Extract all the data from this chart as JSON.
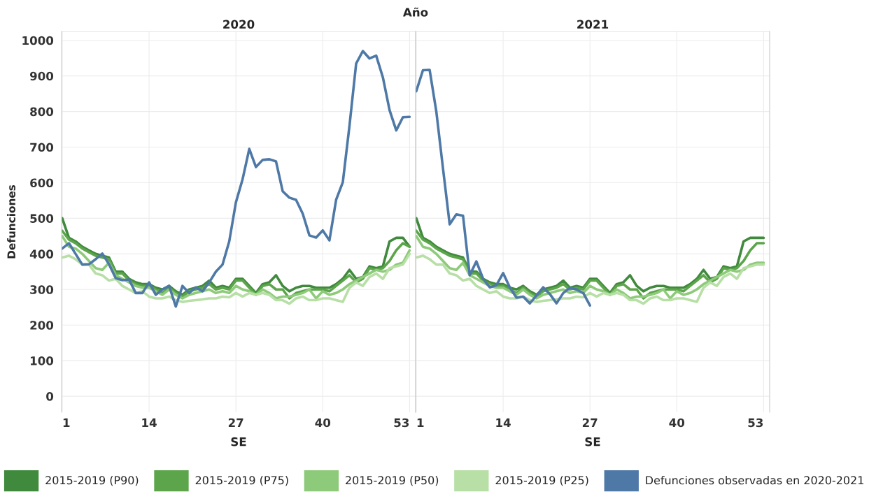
{
  "chart_data": [
    {
      "type": "line",
      "title": "Año",
      "subtitle": "2020",
      "xlabel": "SE",
      "ylabel": "Defunciones",
      "x": [
        1,
        2,
        3,
        4,
        5,
        6,
        7,
        8,
        9,
        10,
        11,
        12,
        13,
        14,
        15,
        16,
        17,
        18,
        19,
        20,
        21,
        22,
        23,
        24,
        25,
        26,
        27,
        28,
        29,
        30,
        31,
        32,
        33,
        34,
        35,
        36,
        37,
        38,
        39,
        40,
        41,
        42,
        43,
        44,
        45,
        46,
        47,
        48,
        49,
        50,
        51,
        52,
        53
      ],
      "xlim": [
        0.9,
        53.9
      ],
      "xticks": [
        1,
        14,
        27,
        40,
        53
      ],
      "ylim": [
        -45,
        1025
      ],
      "yticks": [
        0,
        100,
        200,
        300,
        400,
        500,
        600,
        700,
        800,
        900,
        1000
      ],
      "grid": true,
      "legend": "bottom",
      "series": [
        {
          "name": "2015-2019 (P90)",
          "color": "#3f8a3c",
          "values": [
            500,
            445,
            435,
            420,
            410,
            400,
            395,
            390,
            350,
            350,
            330,
            320,
            315,
            315,
            305,
            300,
            310,
            295,
            285,
            300,
            305,
            310,
            325,
            305,
            310,
            305,
            330,
            330,
            310,
            290,
            315,
            320,
            340,
            310,
            295,
            305,
            310,
            310,
            305,
            305,
            305,
            315,
            330,
            355,
            330,
            335,
            365,
            360,
            365,
            435,
            445,
            445,
            420
          ]
        },
        {
          "name": "2015-2019 (P75)",
          "color": "#5ca54b",
          "values": [
            465,
            440,
            430,
            415,
            405,
            395,
            390,
            385,
            345,
            345,
            325,
            315,
            310,
            310,
            300,
            290,
            305,
            290,
            280,
            295,
            300,
            305,
            315,
            300,
            305,
            300,
            325,
            325,
            305,
            285,
            310,
            315,
            300,
            300,
            275,
            290,
            295,
            300,
            300,
            300,
            295,
            310,
            325,
            340,
            320,
            330,
            360,
            355,
            360,
            380,
            410,
            430,
            420
          ]
        },
        {
          "name": "2015-2019 (P50)",
          "color": "#8dca79",
          "values": [
            450,
            420,
            415,
            400,
            380,
            360,
            355,
            375,
            340,
            330,
            320,
            310,
            305,
            305,
            295,
            285,
            300,
            285,
            275,
            285,
            290,
            295,
            300,
            290,
            295,
            290,
            310,
            300,
            295,
            285,
            300,
            290,
            275,
            280,
            280,
            285,
            290,
            300,
            275,
            295,
            285,
            290,
            300,
            315,
            325,
            335,
            345,
            355,
            350,
            355,
            370,
            375,
            410
          ]
        },
        {
          "name": "2015-2019 (P25)",
          "color": "#b7dfa6",
          "values": [
            390,
            395,
            385,
            370,
            370,
            345,
            340,
            325,
            330,
            310,
            300,
            290,
            295,
            280,
            275,
            275,
            280,
            270,
            265,
            268,
            270,
            272,
            275,
            275,
            280,
            278,
            290,
            280,
            290,
            285,
            290,
            285,
            270,
            270,
            260,
            275,
            280,
            270,
            270,
            275,
            275,
            270,
            265,
            305,
            320,
            310,
            335,
            345,
            330,
            360,
            365,
            370,
            400
          ]
        },
        {
          "name": "Defunciones observadas en 2020-2021",
          "color": "#4e79a7",
          "values": [
            415,
            430,
            400,
            370,
            371,
            385,
            401,
            371,
            332,
            326,
            328,
            290,
            290,
            320,
            285,
            300,
            310,
            252,
            310,
            290,
            306,
            295,
            320,
            350,
            370,
            435,
            545,
            610,
            695,
            644,
            664,
            666,
            660,
            576,
            558,
            552,
            513,
            452,
            446,
            466,
            438,
            552,
            601,
            760,
            935,
            970,
            949,
            957,
            896,
            804,
            747,
            784,
            785
          ]
        }
      ]
    },
    {
      "type": "line",
      "subtitle": "2021",
      "xlabel": "SE",
      "tick_labels": "x",
      "x": [
        1,
        2,
        3,
        4,
        5,
        6,
        7,
        8,
        9,
        10,
        11,
        12,
        13,
        14,
        15,
        16,
        17,
        18,
        19,
        20,
        21,
        22,
        23,
        24,
        25,
        26,
        27,
        28,
        29,
        30,
        31,
        32,
        33,
        34,
        35,
        36,
        37,
        38,
        39,
        40,
        41,
        42,
        43,
        44,
        45,
        46,
        47,
        48,
        49,
        50,
        51,
        52,
        53
      ],
      "xlim": [
        0.9,
        53.9
      ],
      "xticks": [
        1,
        14,
        27,
        40,
        53
      ],
      "ylim": [
        -45,
        1025
      ],
      "yticks": [
        0,
        100,
        200,
        300,
        400,
        500,
        600,
        700,
        800,
        900,
        1000
      ],
      "grid": true,
      "series": [
        {
          "color": "#3f8a3c",
          "values": [
            500,
            445,
            435,
            420,
            410,
            400,
            395,
            390,
            350,
            350,
            330,
            320,
            315,
            315,
            305,
            300,
            310,
            295,
            285,
            300,
            305,
            310,
            325,
            305,
            310,
            305,
            330,
            330,
            310,
            290,
            315,
            320,
            340,
            310,
            295,
            305,
            310,
            310,
            305,
            305,
            305,
            315,
            330,
            355,
            330,
            335,
            365,
            360,
            365,
            435,
            445,
            445,
            445
          ]
        },
        {
          "color": "#5ca54b",
          "values": [
            465,
            440,
            430,
            415,
            405,
            395,
            390,
            385,
            345,
            345,
            325,
            315,
            310,
            310,
            300,
            290,
            305,
            290,
            280,
            295,
            300,
            305,
            315,
            300,
            305,
            300,
            325,
            325,
            305,
            285,
            310,
            315,
            300,
            300,
            275,
            290,
            295,
            300,
            300,
            300,
            295,
            310,
            325,
            340,
            320,
            330,
            360,
            355,
            360,
            380,
            410,
            430,
            430
          ]
        },
        {
          "color": "#8dca79",
          "values": [
            450,
            420,
            415,
            400,
            380,
            360,
            355,
            375,
            340,
            330,
            320,
            310,
            305,
            305,
            295,
            285,
            300,
            285,
            275,
            285,
            290,
            295,
            300,
            290,
            295,
            290,
            310,
            300,
            295,
            285,
            300,
            290,
            275,
            280,
            280,
            285,
            290,
            300,
            275,
            295,
            285,
            290,
            300,
            315,
            325,
            335,
            345,
            355,
            350,
            355,
            370,
            375,
            375
          ]
        },
        {
          "color": "#b7dfa6",
          "values": [
            390,
            395,
            385,
            370,
            370,
            345,
            340,
            325,
            330,
            310,
            300,
            290,
            295,
            280,
            275,
            275,
            280,
            270,
            265,
            268,
            270,
            272,
            275,
            275,
            280,
            278,
            290,
            280,
            290,
            285,
            290,
            285,
            270,
            270,
            260,
            275,
            280,
            270,
            270,
            275,
            275,
            270,
            265,
            305,
            320,
            310,
            335,
            345,
            330,
            360,
            365,
            370,
            370
          ]
        },
        {
          "color": "#4e79a7",
          "values": [
            857,
            916,
            917,
            800,
            640,
            483,
            511,
            507,
            340,
            379,
            330,
            306,
            312,
            346,
            306,
            277,
            280,
            261,
            283,
            306,
            287,
            261,
            290,
            305,
            300,
            290,
            255,
            null,
            null,
            null,
            null,
            null,
            null,
            null,
            null,
            null,
            null,
            null,
            null,
            null,
            null,
            null,
            null,
            null,
            null,
            null,
            null,
            null,
            null,
            null,
            null,
            null,
            null
          ]
        }
      ]
    }
  ]
}
